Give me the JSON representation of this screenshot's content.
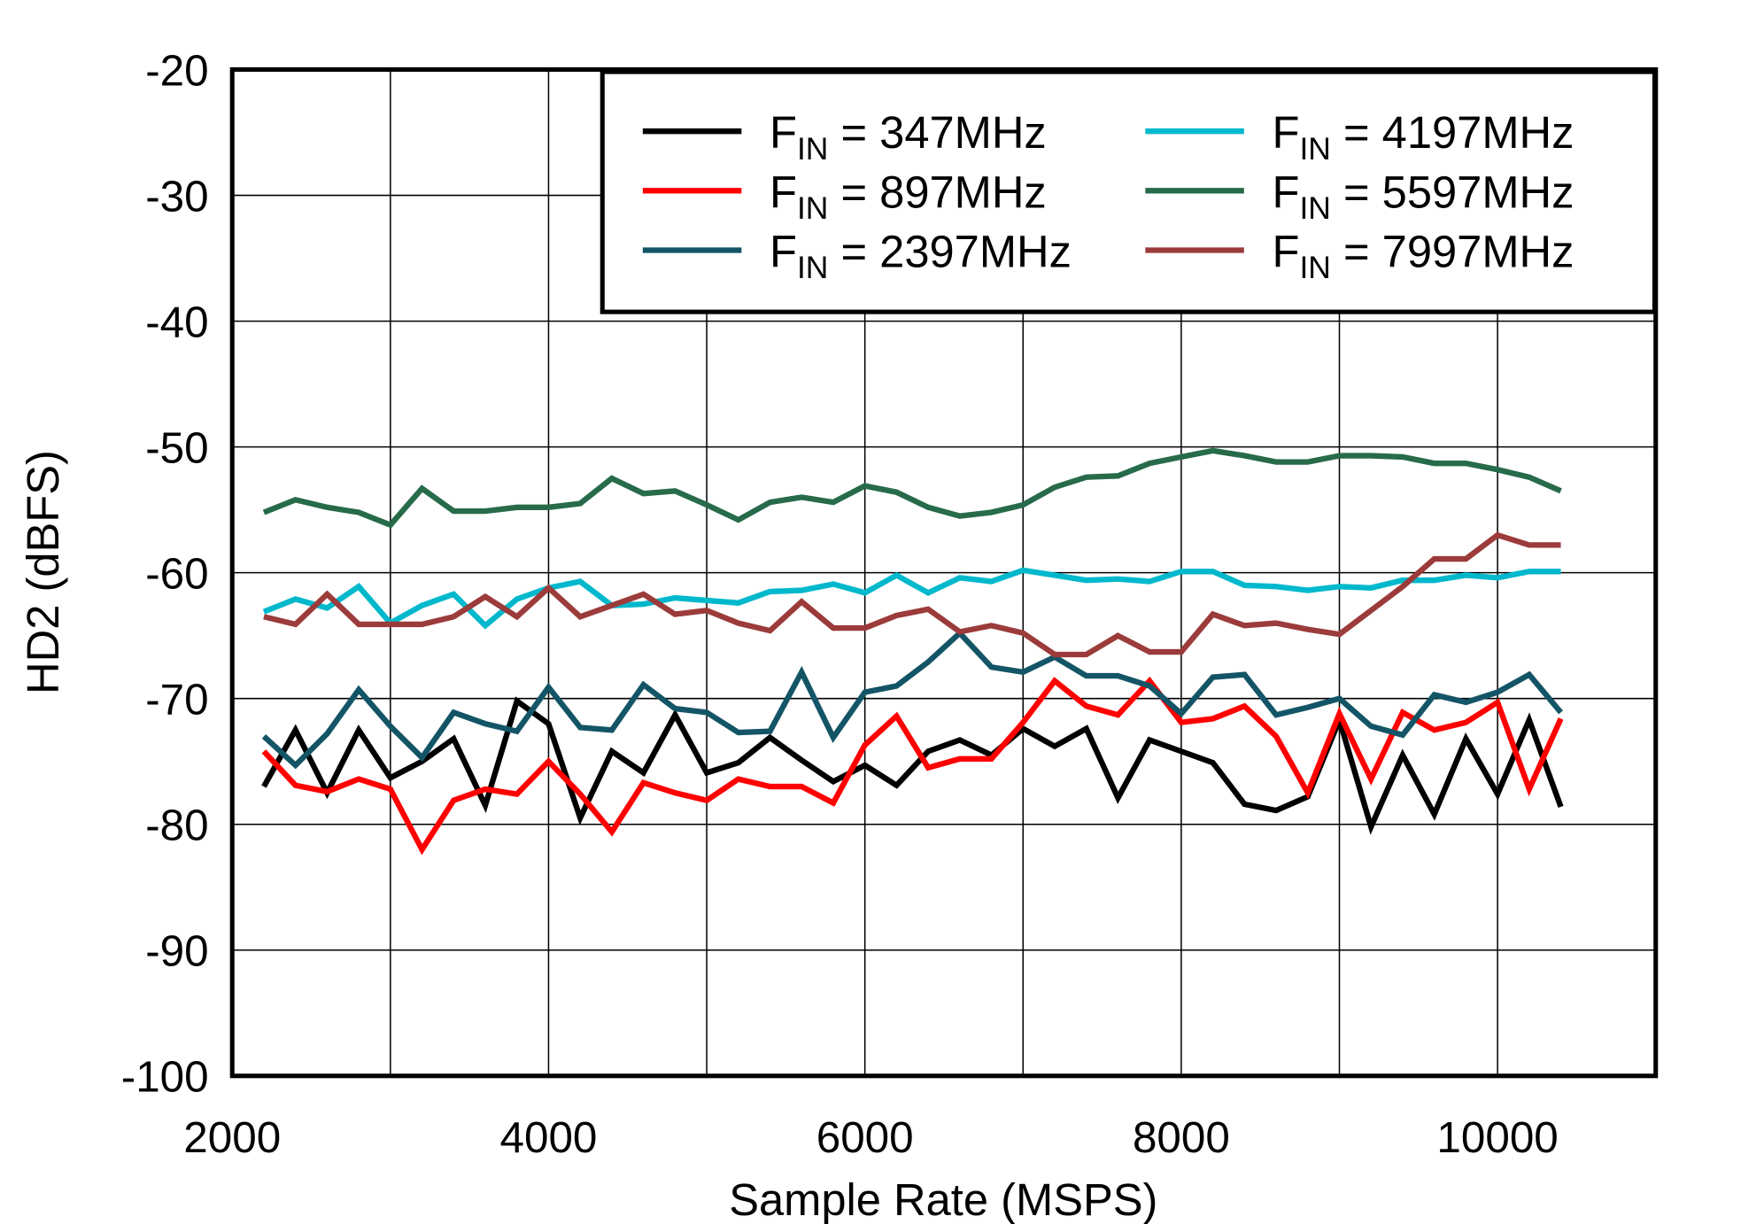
{
  "chart_data": {
    "type": "line",
    "title": "",
    "xlabel": "Sample Rate  (MSPS)",
    "ylabel": "HD2  (dBFS)",
    "xlim": [
      2000,
      11000
    ],
    "ylim": [
      -100,
      -20
    ],
    "xticks": [
      2000,
      4000,
      6000,
      8000,
      10000
    ],
    "xtick_labels": [
      "2000",
      "4000",
      "6000",
      "8000",
      "10000"
    ],
    "yticks": [
      -20,
      -30,
      -40,
      -50,
      -60,
      -70,
      -80,
      -90,
      -100
    ],
    "ytick_labels": [
      "-20",
      "-30",
      "-40",
      "-50",
      "-60",
      "-70",
      "-80",
      "-90",
      "-100"
    ],
    "x_grid_lines": [
      3000,
      4000,
      5000,
      6000,
      7000,
      8000,
      9000,
      10000
    ],
    "grid": true,
    "legend_position": "top-right",
    "x": [
      2200,
      2400,
      2600,
      2800,
      3000,
      3200,
      3400,
      3600,
      3800,
      4000,
      4200,
      4400,
      4600,
      4800,
      5000,
      5200,
      5400,
      5600,
      5800,
      6000,
      6200,
      6400,
      6600,
      6800,
      7000,
      7200,
      7400,
      7600,
      7800,
      8000,
      8200,
      8400,
      8600,
      8800,
      9000,
      9200,
      9400,
      9600,
      9800,
      10000,
      10200,
      10400
    ],
    "series": [
      {
        "name_prefix": "F",
        "name_sub": "IN",
        "name_rest": " = 347MHz",
        "color": "#000000",
        "values": [
          -77,
          -72.5,
          -77.5,
          -72.5,
          -76.3,
          -75,
          -73.2,
          -78.5,
          -70.2,
          -72,
          -79.5,
          -74.2,
          -75.9,
          -71.3,
          -75.9,
          -75.1,
          -73.1,
          -74.9,
          -76.6,
          -75.3,
          -76.9,
          -74.2,
          -73.3,
          -74.5,
          -72.4,
          -73.8,
          -72.4,
          -77.9,
          -73.3,
          -74.2,
          -75.1,
          -78.4,
          -78.9,
          -77.8,
          -71.7,
          -80.2,
          -74.5,
          -79.2,
          -73.2,
          -77.6,
          -71.7,
          -78.6
        ]
      },
      {
        "name_prefix": "F",
        "name_sub": "IN",
        "name_rest": " = 897MHz",
        "color": "#ff0000",
        "values": [
          -74.2,
          -76.9,
          -77.4,
          -76.4,
          -77.2,
          -82,
          -78.1,
          -77.2,
          -77.6,
          -75,
          -77.6,
          -80.6,
          -76.7,
          -77.5,
          -78.1,
          -76.4,
          -77,
          -77,
          -78.3,
          -73.7,
          -71.4,
          -75.5,
          -74.8,
          -74.8,
          -71.9,
          -68.6,
          -70.6,
          -71.3,
          -68.6,
          -71.9,
          -71.6,
          -70.6,
          -73,
          -77.5,
          -71.2,
          -76.4,
          -71.1,
          -72.5,
          -71.9,
          -70.3,
          -77.2,
          -71.6
        ]
      },
      {
        "name_prefix": "F",
        "name_sub": "IN",
        "name_rest": " = 2397MHz",
        "color": "#135566",
        "values": [
          -73,
          -75.3,
          -72.8,
          -69.3,
          -72.2,
          -74.7,
          -71.1,
          -72,
          -72.6,
          -69.1,
          -72.3,
          -72.5,
          -68.9,
          -70.8,
          -71.1,
          -72.7,
          -72.6,
          -67.9,
          -73.1,
          -69.5,
          -69,
          -67.1,
          -64.8,
          -67.5,
          -67.9,
          -66.7,
          -68.2,
          -68.2,
          -69,
          -71.2,
          -68.3,
          -68.1,
          -71.3,
          -70.7,
          -70,
          -72.2,
          -72.9,
          -69.7,
          -70.3,
          -69.5,
          -68.1,
          -71.1
        ]
      },
      {
        "name_prefix": "F",
        "name_sub": "IN",
        "name_rest": " = 4197MHz",
        "color": "#00b8cc",
        "values": [
          -63.1,
          -62.1,
          -62.8,
          -61.1,
          -64,
          -62.6,
          -61.7,
          -64.2,
          -62.1,
          -61.2,
          -60.7,
          -62.6,
          -62.5,
          -62,
          -62.2,
          -62.4,
          -61.5,
          -61.4,
          -60.9,
          -61.6,
          -60.2,
          -61.6,
          -60.4,
          -60.7,
          -59.8,
          -60.2,
          -60.6,
          -60.5,
          -60.7,
          -59.9,
          -59.9,
          -61,
          -61.1,
          -61.4,
          -61.1,
          -61.2,
          -60.6,
          -60.6,
          -60.2,
          -60.4,
          -59.9,
          -59.9
        ]
      },
      {
        "name_prefix": "F",
        "name_sub": "IN",
        "name_rest": " = 5597MHz",
        "color": "#276b4a",
        "values": [
          -55.2,
          -54.2,
          -54.8,
          -55.2,
          -56.2,
          -53.3,
          -55.1,
          -55.1,
          -54.8,
          -54.8,
          -54.5,
          -52.5,
          -53.7,
          -53.5,
          -54.6,
          -55.8,
          -54.4,
          -54,
          -54.4,
          -53.1,
          -53.6,
          -54.8,
          -55.5,
          -55.2,
          -54.6,
          -53.2,
          -52.4,
          -52.3,
          -51.3,
          -50.8,
          -50.3,
          -50.7,
          -51.2,
          -51.2,
          -50.7,
          -50.7,
          -50.8,
          -51.3,
          -51.3,
          -51.8,
          -52.4,
          -53.5
        ]
      },
      {
        "name_prefix": "F",
        "name_sub": "IN",
        "name_rest": " = 7997MHz",
        "color": "#9c3b3b",
        "values": [
          -63.5,
          -64.1,
          -61.7,
          -64.1,
          -64.1,
          -64.1,
          -63.5,
          -61.9,
          -63.5,
          -61.2,
          -63.5,
          -62.6,
          -61.7,
          -63.3,
          -63,
          -64,
          -64.6,
          -62.3,
          -64.4,
          -64.4,
          -63.4,
          -62.9,
          -64.7,
          -64.2,
          -64.8,
          -66.5,
          -66.5,
          -65,
          -66.3,
          -66.3,
          -63.3,
          -64.2,
          -64,
          -64.5,
          -64.9,
          -63,
          -61.1,
          -58.9,
          -58.9,
          -57,
          -57.8,
          -57.8
        ]
      }
    ]
  }
}
